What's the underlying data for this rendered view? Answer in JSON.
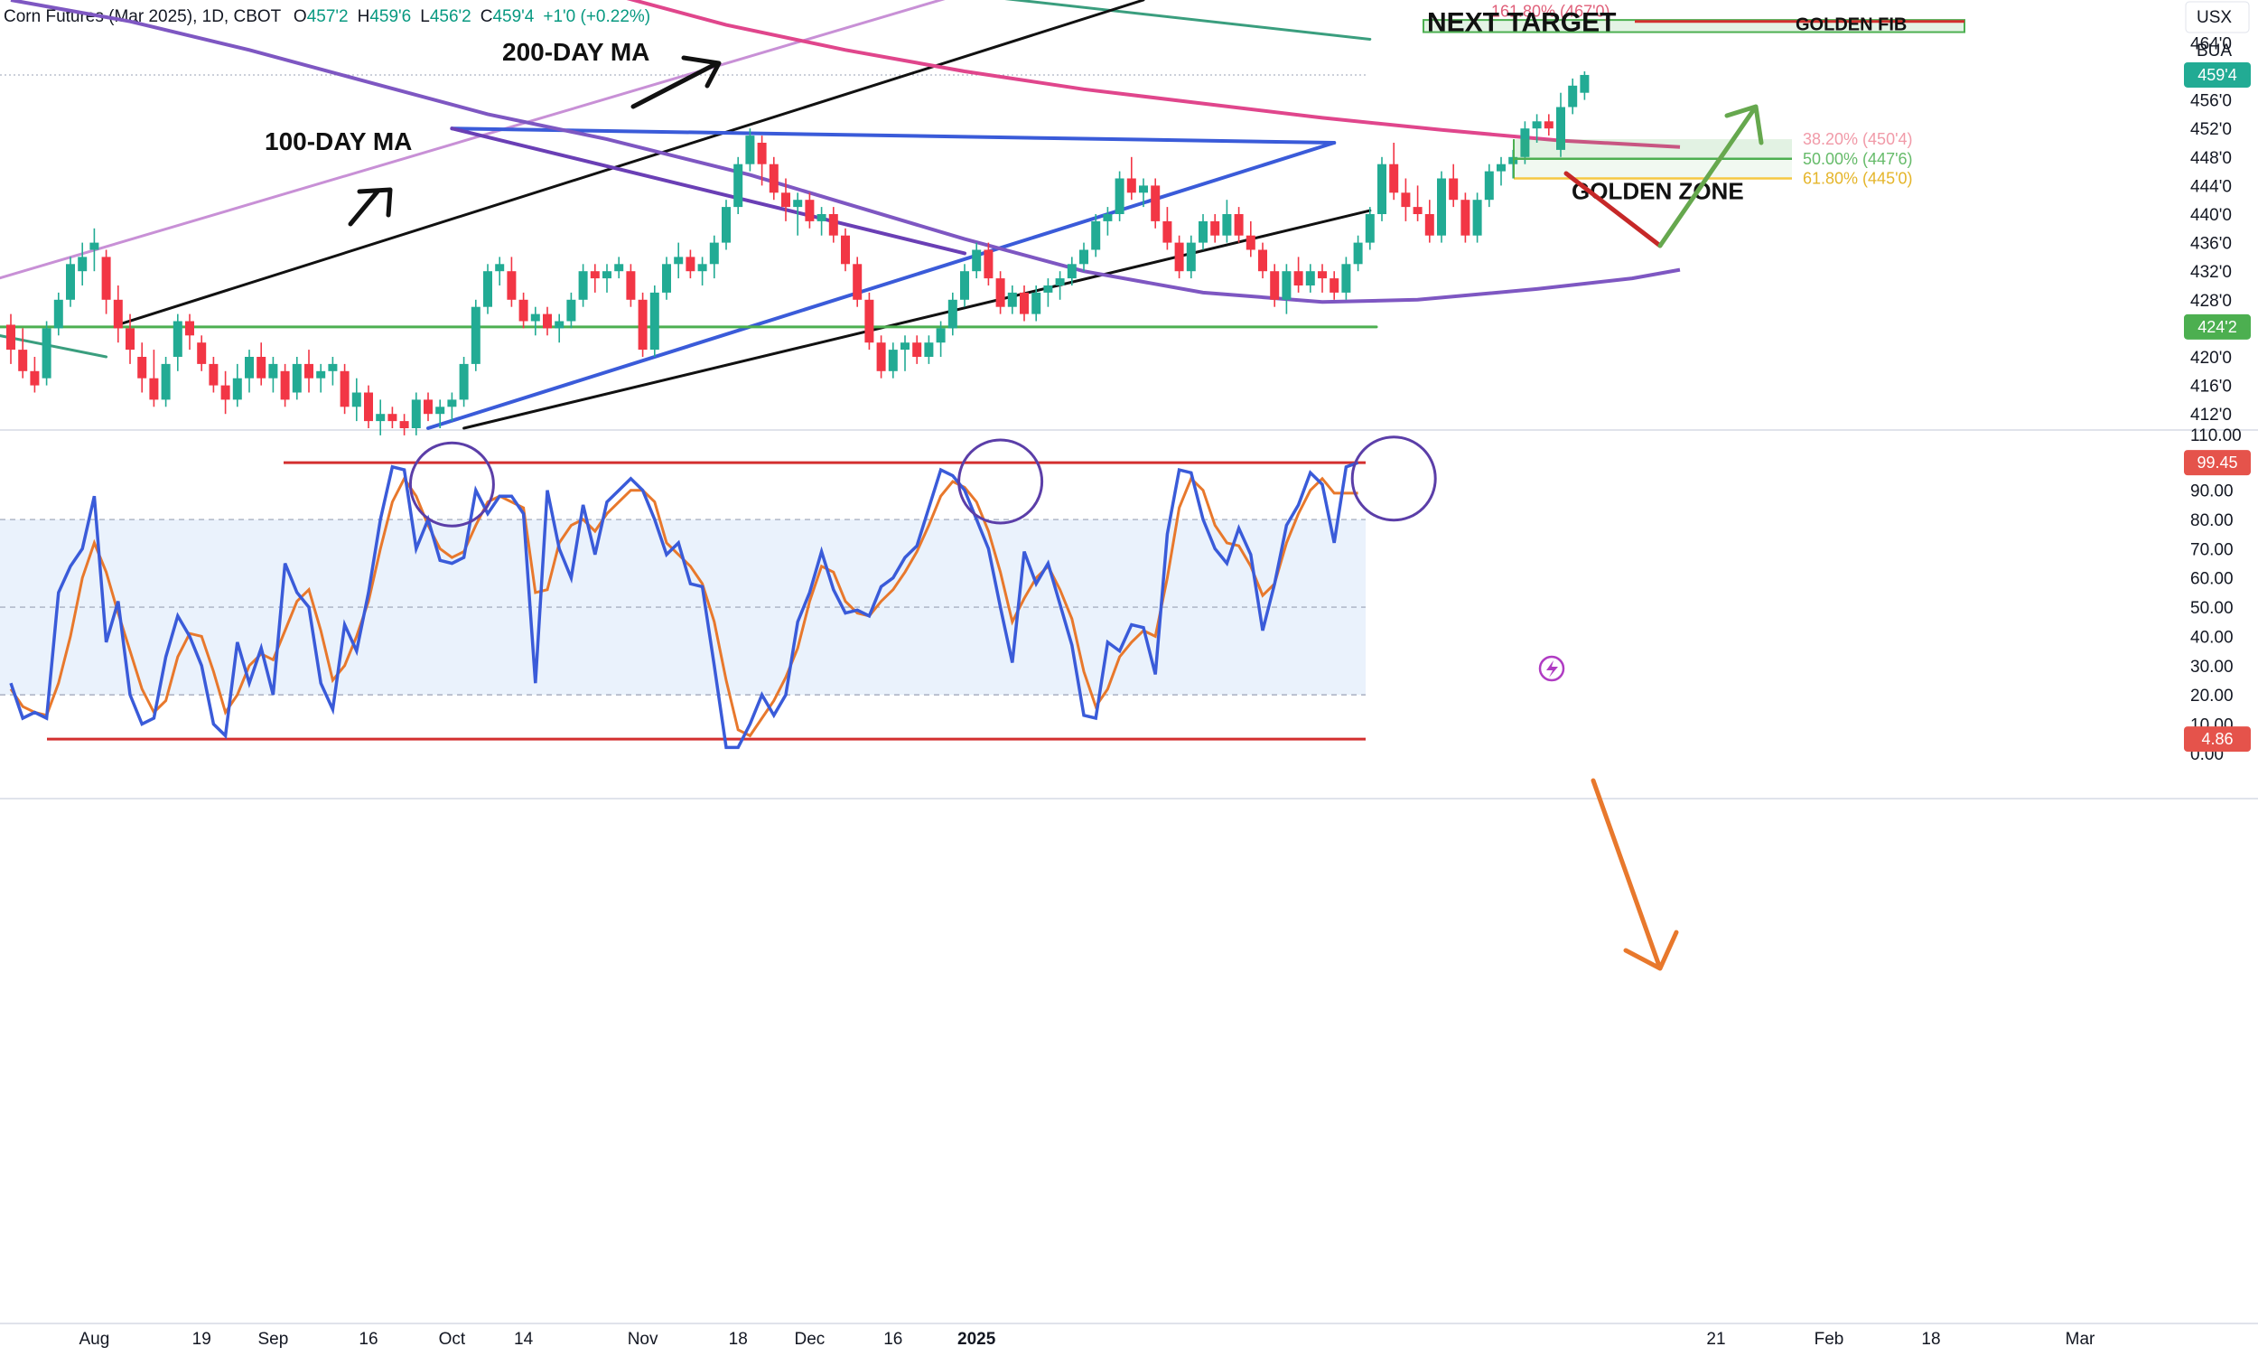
{
  "header": {
    "symbol": "Corn Futures (Mar 2025), 1D, CBOT",
    "open_label": "O",
    "open": "457'2",
    "high_label": "H",
    "high": "459'6",
    "low_label": "L",
    "low": "456'2",
    "close_label": "C",
    "close": "459'4",
    "change": "+1'0 (+0.22%)"
  },
  "corner": {
    "currency": "USX",
    "unit": "BUA"
  },
  "annotations": {
    "ma100": "100-DAY MA",
    "ma200": "200-DAY MA",
    "next_target": "NEXT TARGET",
    "golden_fib": "GOLDEN FIB",
    "golden_zone": "GOLDEN ZONE",
    "fib_1618": "161.80% (467'0)",
    "fib_382": "38.20% (450'4)",
    "fib_500": "50.00% (447'6)",
    "fib_618": "61.80% (445'0)"
  },
  "badges": {
    "last_price": "459'4",
    "support": "424'2",
    "osc_high": "99.45",
    "osc_low": "4.86"
  },
  "colors": {
    "up": "#22ab94",
    "down": "#f23645",
    "ma100": "#7e57c2",
    "ma200": "#e0468c",
    "trend_blue": "#3a5bd9",
    "channel_black": "#111111",
    "support_green": "#4caf50",
    "stoch_k": "#3a5bd9",
    "stoch_d": "#e8782c",
    "osc_band": "#eaf2fc"
  },
  "chart_data": [
    {
      "type": "candlestick",
      "title": "Corn Futures (Mar 2025), 1D, CBOT",
      "ylim": [
        410,
        470
      ],
      "y_ticks": [
        "412'0",
        "416'0",
        "420'0",
        "424'0",
        "428'0",
        "432'0",
        "436'0",
        "440'0",
        "444'0",
        "448'0",
        "452'0",
        "456'0",
        "460'0",
        "464'0"
      ],
      "x_ticks": [
        "Aug",
        "19",
        "Sep",
        "16",
        "Oct",
        "14",
        "Nov",
        "18",
        "Dec",
        "16",
        "2025",
        "21",
        "Feb",
        "18",
        "Mar"
      ],
      "x_ticks_bold": [
        "2025"
      ],
      "candles": [
        [
          424.5,
          426,
          419,
          421
        ],
        [
          421,
          424,
          417,
          418
        ],
        [
          418,
          420,
          415,
          416
        ],
        [
          417,
          425,
          416,
          424
        ],
        [
          424,
          429,
          423,
          428
        ],
        [
          428,
          434,
          427,
          433
        ],
        [
          432,
          436,
          430,
          434
        ],
        [
          435,
          438,
          432,
          436
        ],
        [
          434,
          435,
          426,
          428
        ],
        [
          428,
          430,
          422,
          424
        ],
        [
          424,
          426,
          419,
          421
        ],
        [
          420,
          422,
          415,
          417
        ],
        [
          417,
          421,
          413,
          414
        ],
        [
          414,
          420,
          413,
          419
        ],
        [
          420,
          426,
          418,
          425
        ],
        [
          425,
          426,
          421,
          423
        ],
        [
          422,
          423,
          418,
          419
        ],
        [
          419,
          420,
          415,
          416
        ],
        [
          416,
          418,
          412,
          414
        ],
        [
          414,
          419,
          413,
          417
        ],
        [
          417,
          421,
          415,
          420
        ],
        [
          420,
          422,
          416,
          417
        ],
        [
          417,
          420,
          415,
          419
        ],
        [
          418,
          419,
          413,
          414
        ],
        [
          415,
          420,
          414,
          419
        ],
        [
          419,
          421,
          415,
          417
        ],
        [
          417,
          419,
          415,
          418
        ],
        [
          418,
          420,
          416,
          419
        ],
        [
          418,
          419,
          412,
          413
        ],
        [
          413,
          417,
          411,
          415
        ],
        [
          415,
          416,
          410,
          411
        ],
        [
          411,
          414,
          409,
          412
        ],
        [
          412,
          413,
          410,
          411
        ],
        [
          411,
          412,
          409,
          410
        ],
        [
          410,
          415,
          409,
          414
        ],
        [
          414,
          415,
          411,
          412
        ],
        [
          412,
          414,
          410,
          413
        ],
        [
          413,
          415,
          411,
          414
        ],
        [
          414,
          420,
          413,
          419
        ],
        [
          419,
          428,
          418,
          427
        ],
        [
          427,
          433,
          426,
          432
        ],
        [
          432,
          434,
          430,
          433
        ],
        [
          432,
          434,
          427,
          428
        ],
        [
          428,
          429,
          424,
          425
        ],
        [
          425,
          427,
          423,
          426
        ],
        [
          426,
          427,
          423,
          424
        ],
        [
          424,
          426,
          422,
          425
        ],
        [
          425,
          429,
          424,
          428
        ],
        [
          428,
          433,
          427,
          432
        ],
        [
          432,
          433,
          429,
          431
        ],
        [
          431,
          433,
          429,
          432
        ],
        [
          432,
          434,
          431,
          433
        ],
        [
          432,
          433,
          427,
          428
        ],
        [
          428,
          429,
          420,
          421
        ],
        [
          421,
          430,
          420,
          429
        ],
        [
          429,
          434,
          428,
          433
        ],
        [
          433,
          436,
          431,
          434
        ],
        [
          434,
          435,
          431,
          432
        ],
        [
          432,
          434,
          430,
          433
        ],
        [
          433,
          437,
          431,
          436
        ],
        [
          436,
          442,
          435,
          441
        ],
        [
          441,
          448,
          440,
          447
        ],
        [
          447,
          452,
          446,
          451
        ],
        [
          450,
          451,
          444,
          447
        ],
        [
          447,
          448,
          442,
          443
        ],
        [
          443,
          445,
          439,
          441
        ],
        [
          441,
          443,
          437,
          442
        ],
        [
          442,
          443,
          438,
          439
        ],
        [
          439,
          441,
          437,
          440
        ],
        [
          440,
          441,
          436,
          437
        ],
        [
          437,
          438,
          432,
          433
        ],
        [
          433,
          434,
          427,
          428
        ],
        [
          428,
          429,
          421,
          422
        ],
        [
          422,
          423,
          417,
          418
        ],
        [
          418,
          422,
          417,
          421
        ],
        [
          421,
          423,
          418,
          422
        ],
        [
          422,
          423,
          419,
          420
        ],
        [
          420,
          423,
          419,
          422
        ],
        [
          422,
          425,
          420,
          424
        ],
        [
          424,
          429,
          423,
          428
        ],
        [
          428,
          433,
          427,
          432
        ],
        [
          432,
          436,
          431,
          435
        ],
        [
          435,
          436,
          430,
          431
        ],
        [
          431,
          432,
          426,
          427
        ],
        [
          427,
          430,
          426,
          429
        ],
        [
          429,
          430,
          425,
          426
        ],
        [
          426,
          430,
          425,
          429
        ],
        [
          429,
          431,
          427,
          430
        ],
        [
          430,
          432,
          428,
          431
        ],
        [
          431,
          434,
          430,
          433
        ],
        [
          433,
          436,
          432,
          435
        ],
        [
          435,
          440,
          434,
          439
        ],
        [
          439,
          441,
          437,
          440
        ],
        [
          440,
          446,
          439,
          445
        ],
        [
          445,
          448,
          442,
          443
        ],
        [
          443,
          445,
          441,
          444
        ],
        [
          444,
          445,
          438,
          439
        ],
        [
          439,
          441,
          435,
          436
        ],
        [
          436,
          437,
          431,
          432
        ],
        [
          432,
          437,
          431,
          436
        ],
        [
          436,
          440,
          435,
          439
        ],
        [
          439,
          440,
          436,
          437
        ],
        [
          437,
          442,
          436,
          440
        ],
        [
          440,
          441,
          436,
          437
        ],
        [
          437,
          439,
          434,
          435
        ],
        [
          435,
          436,
          431,
          432
        ],
        [
          432,
          433,
          427,
          428
        ],
        [
          428,
          433,
          426,
          432
        ],
        [
          432,
          434,
          429,
          430
        ],
        [
          430,
          433,
          429,
          432
        ],
        [
          432,
          433,
          429,
          431
        ],
        [
          431,
          432,
          428,
          429
        ],
        [
          429,
          434,
          428,
          433
        ],
        [
          433,
          437,
          432,
          436
        ],
        [
          436,
          441,
          435,
          440
        ],
        [
          440,
          448,
          439,
          447
        ],
        [
          447,
          450,
          442,
          443
        ],
        [
          443,
          445,
          439,
          441
        ],
        [
          441,
          444,
          439,
          440
        ],
        [
          440,
          442,
          436,
          437
        ],
        [
          437,
          446,
          436,
          445
        ],
        [
          445,
          447,
          441,
          442
        ],
        [
          442,
          443,
          436,
          437
        ],
        [
          437,
          443,
          436,
          442
        ],
        [
          442,
          447,
          441,
          446
        ],
        [
          446,
          448,
          444,
          447
        ],
        [
          447,
          449,
          445,
          448
        ],
        [
          448,
          453,
          447,
          452
        ],
        [
          452,
          454,
          450,
          453
        ],
        [
          453,
          454,
          451,
          452
        ],
        [
          449,
          457,
          448,
          455
        ],
        [
          455,
          459,
          454,
          458
        ],
        [
          457,
          460,
          456,
          459.5
        ]
      ],
      "ma100": [
        [
          0,
          470
        ],
        [
          10,
          467
        ],
        [
          20,
          463
        ],
        [
          30,
          458.5
        ],
        [
          40,
          454
        ],
        [
          50,
          450.5
        ],
        [
          62,
          445.5
        ],
        [
          70,
          441.5
        ],
        [
          80,
          436.5
        ],
        [
          90,
          432
        ],
        [
          100,
          429
        ],
        [
          110,
          427.7
        ],
        [
          118,
          428
        ],
        [
          128,
          429.5
        ],
        [
          136,
          431
        ],
        [
          140,
          432.2
        ]
      ],
      "ma200": [
        [
          50,
          471
        ],
        [
          60,
          466.5
        ],
        [
          70,
          463
        ],
        [
          80,
          460
        ],
        [
          90,
          457.5
        ],
        [
          100,
          455.5
        ],
        [
          110,
          453.5
        ],
        [
          120,
          451.8
        ],
        [
          130,
          450.3
        ],
        [
          140,
          449.4
        ]
      ]
    },
    {
      "type": "line",
      "title": "Stochastic oscillator",
      "ylim": [
        -5,
        110
      ],
      "y_ticks": [
        "0.00",
        "10.00",
        "20.00",
        "30.00",
        "40.00",
        "50.00",
        "60.00",
        "70.00",
        "80.00",
        "90.00"
      ],
      "top_tick": "110.00",
      "band": [
        20,
        80
      ],
      "series": [
        {
          "values": [
            24,
            12,
            14,
            12,
            55,
            64,
            70,
            88,
            38,
            52,
            20,
            10,
            12,
            33,
            47,
            40,
            30,
            10,
            6,
            38,
            24,
            36,
            20,
            65,
            55,
            50,
            24,
            15,
            44,
            35,
            55,
            80,
            98,
            97,
            70,
            80,
            66,
            65,
            67,
            90,
            82,
            88,
            88,
            82,
            24,
            90,
            70,
            60,
            85,
            68,
            86,
            90,
            94,
            90,
            80,
            68,
            72,
            58,
            57,
            30,
            2,
            2,
            10,
            20,
            13,
            20,
            45,
            55,
            69,
            56,
            48,
            49,
            47,
            57,
            60,
            67,
            71,
            84,
            97,
            95,
            90,
            80,
            70,
            50,
            31,
            69,
            58,
            65,
            51,
            37,
            13,
            12,
            38,
            35,
            44,
            43,
            27,
            75,
            97,
            96,
            80,
            70,
            65,
            77,
            68,
            42,
            58,
            78,
            85,
            96,
            92,
            72,
            98,
            99.45
          ]
        },
        {
          "values": [
            22,
            16,
            14,
            13,
            24,
            40,
            60,
            72,
            62,
            48,
            35,
            22,
            14,
            18,
            33,
            41,
            40,
            28,
            14,
            20,
            30,
            34,
            32,
            42,
            52,
            56,
            42,
            25,
            30,
            40,
            52,
            70,
            86,
            94,
            88,
            78,
            70,
            67,
            69,
            78,
            86,
            88,
            86,
            84,
            55,
            56,
            72,
            78,
            80,
            76,
            82,
            86,
            90,
            90,
            86,
            72,
            68,
            64,
            58,
            45,
            25,
            8,
            6,
            12,
            18,
            26,
            36,
            52,
            64,
            62,
            52,
            48,
            47,
            52,
            56,
            62,
            69,
            78,
            88,
            93,
            91,
            86,
            76,
            62,
            45,
            53,
            60,
            64,
            56,
            46,
            28,
            16,
            22,
            33,
            38,
            42,
            40,
            60,
            84,
            94,
            90,
            78,
            72,
            71,
            64,
            54,
            58,
            72,
            82,
            90,
            94,
            89,
            89,
            89
          ]
        }
      ],
      "ref_lines": [
        99.45,
        4.86
      ]
    }
  ]
}
